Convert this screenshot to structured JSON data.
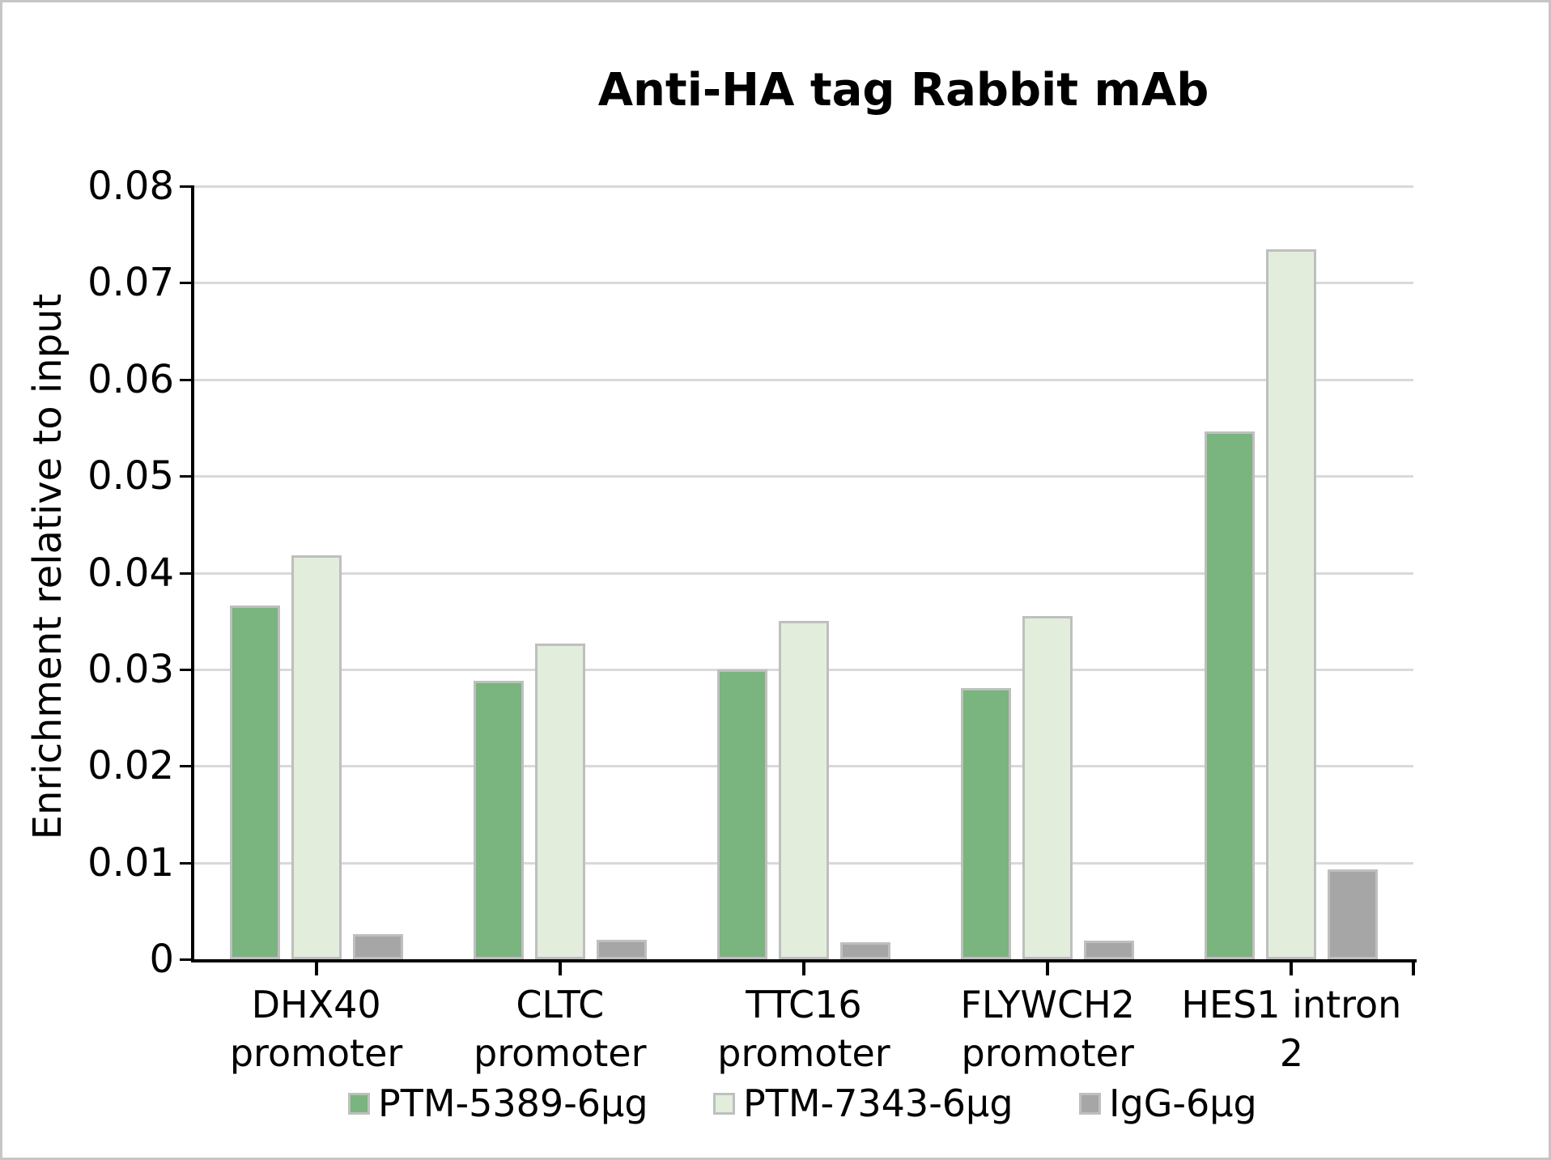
{
  "title": "Anti-HA tag Rabbit mAb",
  "chart_data": {
    "type": "bar",
    "title": "Anti-HA tag Rabbit mAb",
    "xlabel": "",
    "ylabel": "Enrichment relative to input",
    "ylim": [
      0,
      0.08
    ],
    "ytick_step": 0.01,
    "ytick_labels": [
      "0",
      "0.01",
      "0.02",
      "0.03",
      "0.04",
      "0.05",
      "0.06",
      "0.07",
      "0.08"
    ],
    "grid": true,
    "gridline_color": "#d9d9d9",
    "legend_position": "bottom",
    "bar_border_color": "#bfbfbf",
    "categories": [
      "DHX40 promoter",
      "CLTC promoter",
      "TTC16 promoter",
      "FLYWCH2 promoter",
      "HES1 intron 2"
    ],
    "category_lines": [
      [
        "DHX40",
        "promoter"
      ],
      [
        "CLTC",
        "promoter"
      ],
      [
        "TTC16",
        "promoter"
      ],
      [
        "FLYWCH2",
        "promoter"
      ],
      [
        "HES1 intron",
        "2"
      ]
    ],
    "series": [
      {
        "name": "PTM-5389-6µg",
        "color": "#7ab47e",
        "values": [
          0.0366,
          0.0288,
          0.03,
          0.0281,
          0.0546
        ]
      },
      {
        "name": "PTM-7343-6µg",
        "color": "#e2eedb",
        "values": [
          0.0418,
          0.0327,
          0.035,
          0.0355,
          0.0735
        ]
      },
      {
        "name": "IgG-6µg",
        "color": "#a6a6a6",
        "values": [
          0.0026,
          0.002,
          0.0018,
          0.0019,
          0.0093
        ]
      }
    ]
  }
}
